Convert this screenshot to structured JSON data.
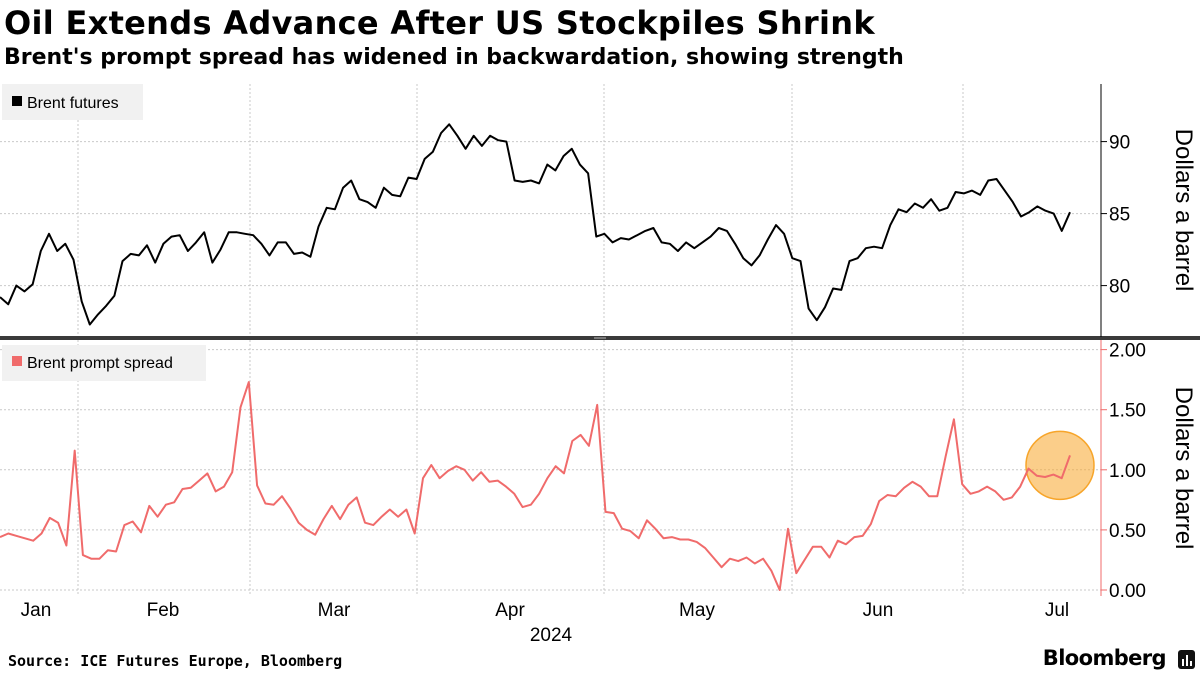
{
  "header": {
    "title": "Oil Extends Advance After US Stockpiles Shrink",
    "subtitle": "Brent's prompt spread has widened in backwardation, showing strength"
  },
  "footer": {
    "source": "Source: ICE Futures Europe, Bloomberg",
    "brand": "Bloomberg"
  },
  "chart_data": [
    {
      "type": "line",
      "series": [
        {
          "name": "Brent futures",
          "color": "#000000",
          "values": [
            79.2,
            78.7,
            80.0,
            79.6,
            80.1,
            82.4,
            83.6,
            82.4,
            82.9,
            81.8,
            78.9,
            77.3,
            78.0,
            78.6,
            79.3,
            81.7,
            82.2,
            82.1,
            82.8,
            81.6,
            82.9,
            83.4,
            83.5,
            82.4,
            83.0,
            83.7,
            81.6,
            82.5,
            83.7,
            83.7,
            83.6,
            83.5,
            82.9,
            82.1,
            83.0,
            83.0,
            82.2,
            82.3,
            82.0,
            84.1,
            85.4,
            85.3,
            86.8,
            87.3,
            86.0,
            85.8,
            85.4,
            86.8,
            86.3,
            86.2,
            87.5,
            87.4,
            88.8,
            89.3,
            90.6,
            91.2,
            90.4,
            89.5,
            90.4,
            89.7,
            90.4,
            90.1,
            90.0,
            87.3,
            87.2,
            87.3,
            87.1,
            88.4,
            88.0,
            89.0,
            89.5,
            88.4,
            87.8,
            83.4,
            83.6,
            83.0,
            83.3,
            83.2,
            83.5,
            83.8,
            84.0,
            83.0,
            82.9,
            82.4,
            83.0,
            82.6,
            83.0,
            83.4,
            84.0,
            83.8,
            82.9,
            81.9,
            81.4,
            82.1,
            83.2,
            84.2,
            83.6,
            81.9,
            81.7,
            78.4,
            77.6,
            78.5,
            79.8,
            79.7,
            81.7,
            81.9,
            82.6,
            82.7,
            82.6,
            84.2,
            85.3,
            85.1,
            85.7,
            85.4,
            86.0,
            85.2,
            85.4,
            86.5,
            86.4,
            86.6,
            86.3,
            87.3,
            87.4,
            86.6,
            85.8,
            84.8,
            85.1,
            85.5,
            85.2,
            85.0,
            83.8,
            85.1
          ]
        }
      ],
      "ylim": [
        76.5,
        94
      ],
      "yticks": [
        "80",
        "85",
        "90"
      ],
      "ylabel": "Dollars a barrel"
    },
    {
      "type": "line",
      "series": [
        {
          "name": "Brent prompt spread",
          "color": "#f06b6b",
          "values": [
            0.44,
            0.47,
            0.45,
            0.43,
            0.41,
            0.47,
            0.6,
            0.56,
            0.37,
            1.16,
            0.29,
            0.26,
            0.26,
            0.33,
            0.32,
            0.54,
            0.57,
            0.48,
            0.7,
            0.61,
            0.71,
            0.73,
            0.84,
            0.85,
            0.91,
            0.97,
            0.82,
            0.86,
            0.98,
            1.52,
            1.73,
            0.87,
            0.72,
            0.71,
            0.78,
            0.68,
            0.56,
            0.5,
            0.46,
            0.59,
            0.7,
            0.59,
            0.71,
            0.77,
            0.56,
            0.54,
            0.61,
            0.67,
            0.61,
            0.67,
            0.47,
            0.93,
            1.04,
            0.93,
            0.99,
            1.03,
            1.0,
            0.91,
            0.98,
            0.9,
            0.91,
            0.86,
            0.8,
            0.69,
            0.71,
            0.8,
            0.93,
            1.03,
            0.97,
            1.24,
            1.29,
            1.2,
            1.54,
            0.65,
            0.64,
            0.51,
            0.49,
            0.43,
            0.58,
            0.51,
            0.43,
            0.44,
            0.42,
            0.42,
            0.4,
            0.35,
            0.27,
            0.19,
            0.26,
            0.24,
            0.27,
            0.22,
            0.26,
            0.16,
            0.0,
            0.51,
            0.14,
            0.25,
            0.36,
            0.36,
            0.27,
            0.41,
            0.38,
            0.44,
            0.45,
            0.55,
            0.74,
            0.79,
            0.78,
            0.85,
            0.9,
            0.86,
            0.78,
            0.78,
            1.11,
            1.42,
            0.88,
            0.8,
            0.82,
            0.86,
            0.82,
            0.75,
            0.77,
            0.86,
            1.01,
            0.95,
            0.94,
            0.96,
            0.93,
            1.12
          ]
        }
      ],
      "ylim": [
        -0.05,
        2.08
      ],
      "yticks": [
        "0.00",
        "0.50",
        "1.00",
        "1.50",
        "2.00"
      ],
      "ylabel": "Dollars a barrel",
      "highlight": {
        "color": "#f7a52a",
        "index": 129
      }
    }
  ],
  "x_axis": {
    "months": [
      "Jan",
      "Feb",
      "Mar",
      "Apr",
      "May",
      "Jun",
      "Jul"
    ],
    "year": "2024"
  }
}
